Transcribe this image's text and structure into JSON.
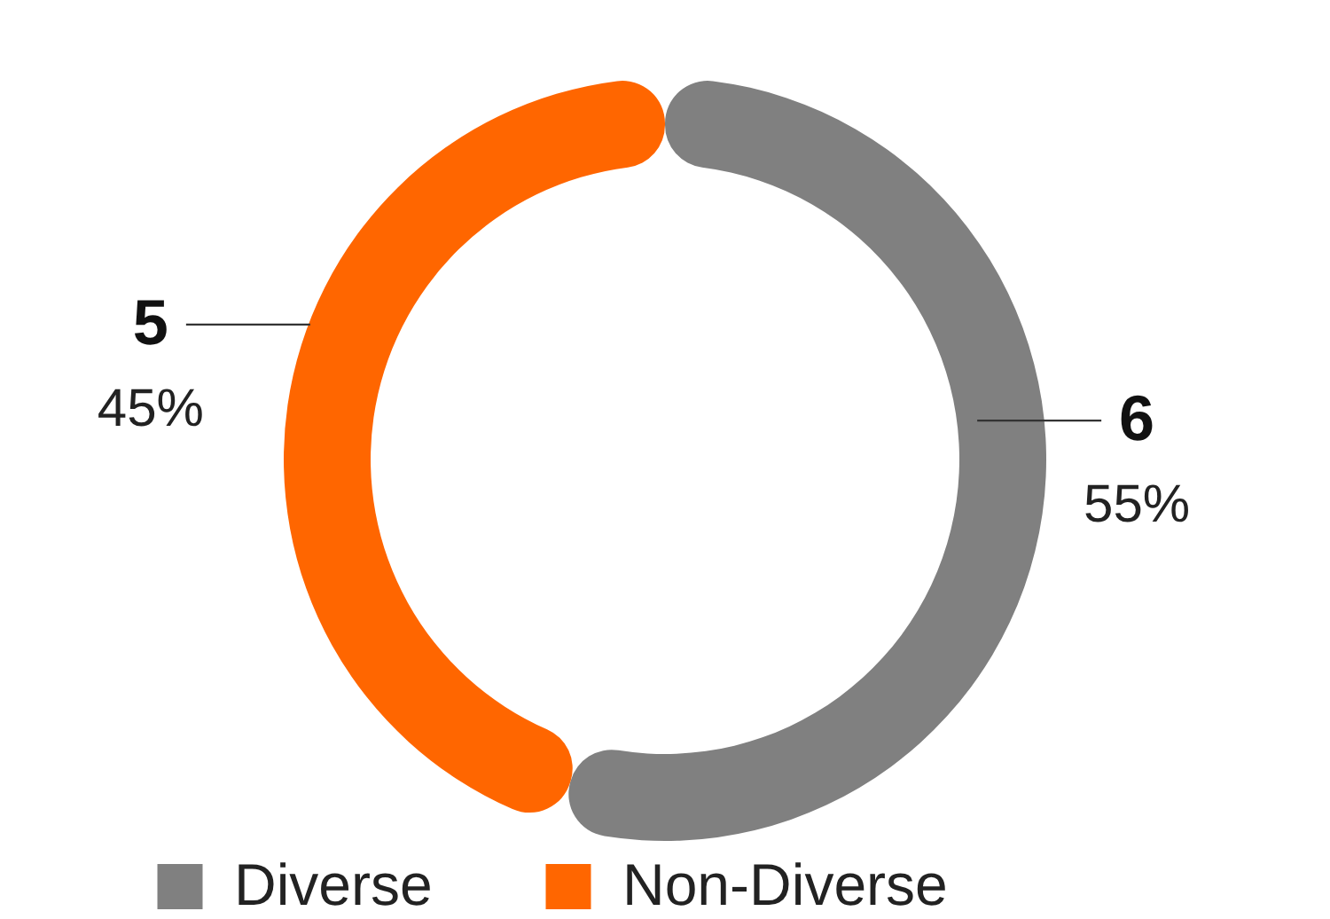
{
  "chart_data": {
    "type": "donut",
    "categories": [
      "Diverse",
      "Non-Diverse"
    ],
    "values": [
      6,
      5
    ],
    "colors": [
      "#808080",
      "#ff6600"
    ],
    "data_labels": true,
    "annotations": [
      "55%",
      "45%"
    ],
    "legend": "bottom"
  }
}
